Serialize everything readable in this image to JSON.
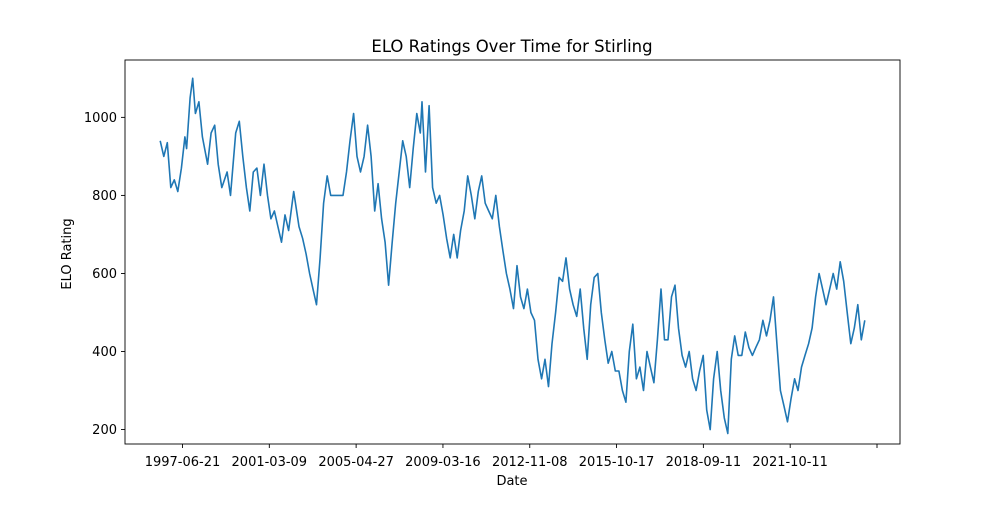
{
  "chart_data": {
    "type": "line",
    "title": "ELO Ratings Over Time for Stirling",
    "xlabel": "Date",
    "ylabel": "ELO Rating",
    "x_tick_labels": [
      "1997-06-21",
      "2001-03-09",
      "2005-04-27",
      "2009-03-16",
      "2012-11-08",
      "2015-10-17",
      "2018-09-11",
      "2021-10-11",
      ""
    ],
    "y_ticks": [
      200,
      400,
      600,
      800,
      1000
    ],
    "ylim": [
      163,
      1147
    ],
    "grid": false,
    "series": [
      {
        "color": "#1f77b4",
        "points": [
          [
            "1995-12-01",
            940
          ],
          [
            "1996-02-01",
            900
          ],
          [
            "1996-04-01",
            935
          ],
          [
            "1996-06-01",
            820
          ],
          [
            "1996-08-01",
            840
          ],
          [
            "1996-10-01",
            810
          ],
          [
            "1996-12-01",
            870
          ],
          [
            "1997-02-01",
            950
          ],
          [
            "1997-03-01",
            920
          ],
          [
            "1997-05-01",
            1050
          ],
          [
            "1997-06-15",
            1100
          ],
          [
            "1997-08-01",
            1010
          ],
          [
            "1997-10-01",
            1040
          ],
          [
            "1997-12-01",
            950
          ],
          [
            "1998-03-01",
            880
          ],
          [
            "1998-05-01",
            960
          ],
          [
            "1998-07-01",
            980
          ],
          [
            "1998-09-01",
            880
          ],
          [
            "1998-11-01",
            820
          ],
          [
            "1999-02-01",
            860
          ],
          [
            "1999-04-01",
            800
          ],
          [
            "1999-07-01",
            960
          ],
          [
            "1999-09-01",
            990
          ],
          [
            "1999-11-01",
            900
          ],
          [
            "2000-01-01",
            820
          ],
          [
            "2000-03-01",
            760
          ],
          [
            "2000-05-01",
            860
          ],
          [
            "2000-07-01",
            870
          ],
          [
            "2000-09-01",
            800
          ],
          [
            "2000-11-01",
            880
          ],
          [
            "2001-01-01",
            800
          ],
          [
            "2001-03-01",
            740
          ],
          [
            "2001-05-01",
            760
          ],
          [
            "2001-07-01",
            720
          ],
          [
            "2001-09-01",
            680
          ],
          [
            "2001-11-01",
            750
          ],
          [
            "2002-01-01",
            710
          ],
          [
            "2002-04-01",
            810
          ],
          [
            "2002-07-01",
            720
          ],
          [
            "2002-09-01",
            690
          ],
          [
            "2002-11-01",
            650
          ],
          [
            "2003-01-01",
            600
          ],
          [
            "2003-03-01",
            560
          ],
          [
            "2003-05-01",
            520
          ],
          [
            "2003-07-01",
            640
          ],
          [
            "2003-09-01",
            780
          ],
          [
            "2003-11-01",
            850
          ],
          [
            "2004-01-01",
            800
          ],
          [
            "2004-08-01",
            800
          ],
          [
            "2004-10-01",
            860
          ],
          [
            "2004-12-01",
            940
          ],
          [
            "2005-02-01",
            1010
          ],
          [
            "2005-04-01",
            900
          ],
          [
            "2005-06-01",
            860
          ],
          [
            "2005-08-01",
            900
          ],
          [
            "2005-10-01",
            980
          ],
          [
            "2005-12-01",
            900
          ],
          [
            "2006-02-01",
            760
          ],
          [
            "2006-04-01",
            830
          ],
          [
            "2006-06-01",
            740
          ],
          [
            "2006-08-01",
            680
          ],
          [
            "2006-10-01",
            570
          ],
          [
            "2006-12-01",
            680
          ],
          [
            "2007-02-01",
            780
          ],
          [
            "2007-04-01",
            860
          ],
          [
            "2007-06-01",
            940
          ],
          [
            "2007-08-01",
            900
          ],
          [
            "2007-10-01",
            820
          ],
          [
            "2007-12-01",
            920
          ],
          [
            "2008-02-01",
            1010
          ],
          [
            "2008-04-01",
            960
          ],
          [
            "2008-05-01",
            1040
          ],
          [
            "2008-07-01",
            860
          ],
          [
            "2008-09-01",
            1030
          ],
          [
            "2008-11-01",
            820
          ],
          [
            "2009-01-01",
            780
          ],
          [
            "2009-03-01",
            800
          ],
          [
            "2009-05-01",
            750
          ],
          [
            "2009-07-01",
            690
          ],
          [
            "2009-09-01",
            640
          ],
          [
            "2009-11-01",
            700
          ],
          [
            "2010-01-01",
            640
          ],
          [
            "2010-03-01",
            710
          ],
          [
            "2010-05-01",
            760
          ],
          [
            "2010-07-01",
            850
          ],
          [
            "2010-09-01",
            800
          ],
          [
            "2010-11-01",
            740
          ],
          [
            "2011-01-01",
            810
          ],
          [
            "2011-03-01",
            850
          ],
          [
            "2011-05-01",
            780
          ],
          [
            "2011-07-01",
            760
          ],
          [
            "2011-09-01",
            740
          ],
          [
            "2011-11-01",
            800
          ],
          [
            "2012-01-01",
            720
          ],
          [
            "2012-03-01",
            660
          ],
          [
            "2012-05-01",
            600
          ],
          [
            "2012-07-01",
            560
          ],
          [
            "2012-09-01",
            510
          ],
          [
            "2012-11-01",
            620
          ],
          [
            "2013-01-01",
            540
          ],
          [
            "2013-03-01",
            510
          ],
          [
            "2013-05-01",
            560
          ],
          [
            "2013-07-01",
            500
          ],
          [
            "2013-09-01",
            480
          ],
          [
            "2013-11-01",
            380
          ],
          [
            "2014-01-01",
            330
          ],
          [
            "2014-03-01",
            380
          ],
          [
            "2014-05-01",
            310
          ],
          [
            "2014-07-01",
            420
          ],
          [
            "2014-09-01",
            500
          ],
          [
            "2014-11-01",
            590
          ],
          [
            "2015-01-01",
            580
          ],
          [
            "2015-03-01",
            640
          ],
          [
            "2015-05-01",
            560
          ],
          [
            "2015-07-01",
            520
          ],
          [
            "2015-09-01",
            490
          ],
          [
            "2015-11-01",
            560
          ],
          [
            "2016-01-01",
            460
          ],
          [
            "2016-03-01",
            380
          ],
          [
            "2016-05-01",
            520
          ],
          [
            "2016-07-01",
            590
          ],
          [
            "2016-09-01",
            600
          ],
          [
            "2016-11-01",
            500
          ],
          [
            "2017-01-01",
            430
          ],
          [
            "2017-03-01",
            370
          ],
          [
            "2017-05-01",
            400
          ],
          [
            "2017-07-01",
            350
          ],
          [
            "2017-09-01",
            350
          ],
          [
            "2017-11-01",
            300
          ],
          [
            "2018-01-01",
            270
          ],
          [
            "2018-03-01",
            400
          ],
          [
            "2018-05-01",
            470
          ],
          [
            "2018-07-01",
            330
          ],
          [
            "2018-09-01",
            360
          ],
          [
            "2018-11-01",
            300
          ],
          [
            "2019-01-01",
            400
          ],
          [
            "2019-03-01",
            360
          ],
          [
            "2019-05-01",
            320
          ],
          [
            "2019-07-01",
            430
          ],
          [
            "2019-09-01",
            560
          ],
          [
            "2019-11-01",
            430
          ],
          [
            "2020-01-01",
            430
          ],
          [
            "2020-03-01",
            540
          ],
          [
            "2020-05-01",
            570
          ],
          [
            "2020-07-01",
            460
          ],
          [
            "2020-09-01",
            390
          ],
          [
            "2020-11-01",
            360
          ],
          [
            "2021-01-01",
            400
          ],
          [
            "2021-03-01",
            330
          ],
          [
            "2021-05-01",
            300
          ],
          [
            "2021-07-01",
            350
          ],
          [
            "2021-09-01",
            390
          ],
          [
            "2021-11-01",
            250
          ],
          [
            "2022-01-01",
            200
          ],
          [
            "2022-03-01",
            330
          ],
          [
            "2022-05-01",
            400
          ],
          [
            "2022-07-01",
            300
          ],
          [
            "2022-09-01",
            230
          ],
          [
            "2022-11-01",
            190
          ],
          [
            "2023-01-01",
            380
          ],
          [
            "2023-03-01",
            440
          ],
          [
            "2023-05-01",
            390
          ],
          [
            "2023-07-01",
            390
          ],
          [
            "2023-09-01",
            450
          ],
          [
            "2023-11-01",
            410
          ],
          [
            "2024-01-01",
            390
          ],
          [
            "2024-03-01",
            410
          ],
          [
            "2024-05-01",
            430
          ],
          [
            "2024-07-01",
            480
          ],
          [
            "2024-09-01",
            440
          ],
          [
            "2024-11-01",
            480
          ],
          [
            "2025-01-01",
            540
          ],
          [
            "2025-03-01",
            420
          ],
          [
            "2025-05-01",
            300
          ],
          [
            "2025-07-01",
            260
          ],
          [
            "2025-09-01",
            220
          ],
          [
            "2025-11-01",
            280
          ],
          [
            "2026-01-01",
            330
          ],
          [
            "2026-03-01",
            300
          ],
          [
            "2026-05-01",
            360
          ],
          [
            "2026-07-01",
            390
          ],
          [
            "2026-09-01",
            420
          ],
          [
            "2026-11-01",
            460
          ],
          [
            "2027-01-01",
            540
          ],
          [
            "2027-03-01",
            600
          ],
          [
            "2027-05-01",
            560
          ],
          [
            "2027-07-01",
            520
          ],
          [
            "2027-09-01",
            560
          ],
          [
            "2027-11-01",
            600
          ],
          [
            "2028-01-01",
            560
          ],
          [
            "2028-03-01",
            630
          ],
          [
            "2028-05-01",
            580
          ],
          [
            "2028-07-01",
            500
          ],
          [
            "2028-09-01",
            420
          ],
          [
            "2028-11-01",
            460
          ],
          [
            "2029-01-01",
            520
          ],
          [
            "2029-03-01",
            430
          ],
          [
            "2029-05-01",
            480
          ]
        ]
      }
    ]
  }
}
